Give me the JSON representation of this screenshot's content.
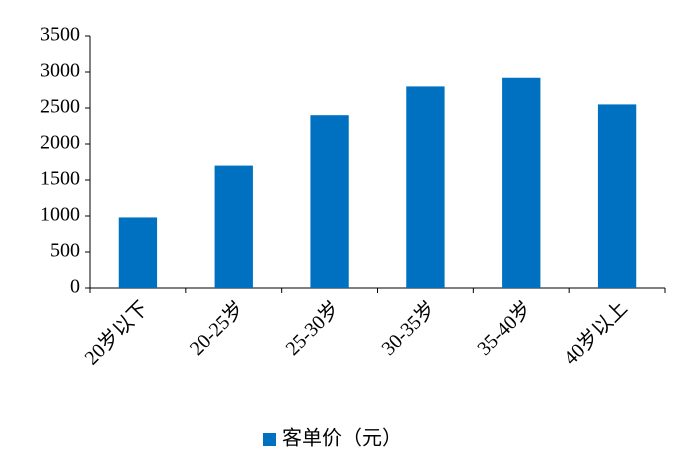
{
  "chart_data": {
    "type": "bar",
    "categories": [
      "20岁以下",
      "20-25岁",
      "25-30岁",
      "30-35岁",
      "35-40岁",
      "40岁以上"
    ],
    "series": [
      {
        "name": "客单价（元）",
        "color": "#0070c0",
        "values": [
          980,
          1700,
          2400,
          2800,
          2920,
          2550
        ]
      }
    ],
    "ylim": [
      0,
      3500
    ],
    "yticks": [
      0,
      500,
      1000,
      1500,
      2000,
      2500,
      3000,
      3500
    ],
    "grid": false,
    "legend": "bottom"
  }
}
